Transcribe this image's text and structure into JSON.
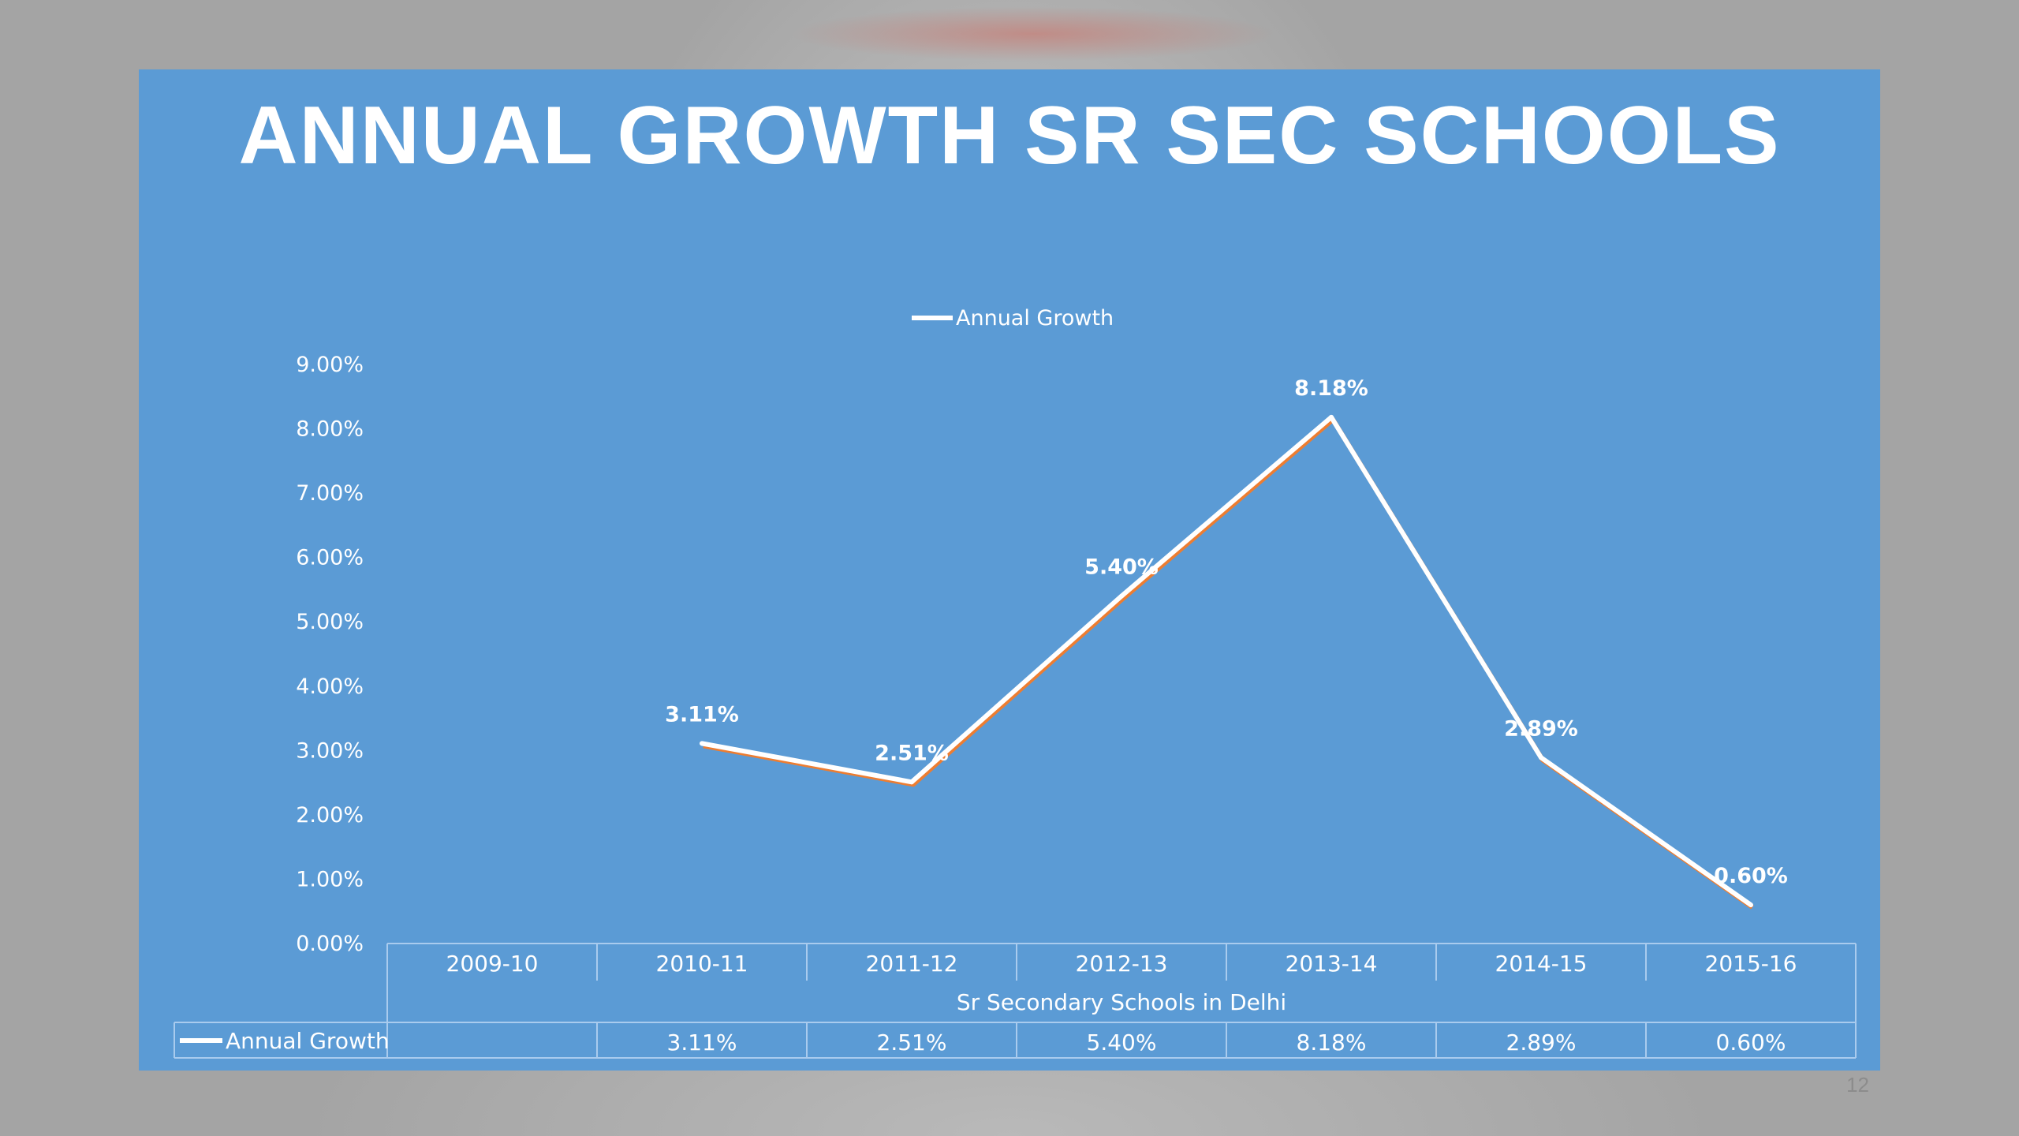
{
  "slide": {
    "page_number": "12"
  },
  "colors": {
    "panel_background": "#5b9bd5",
    "series_line": "#ffffff",
    "series_shadow": "#ed7d31",
    "text": "#ffffff"
  },
  "chart_data": {
    "type": "line",
    "title": "ANNUAL GROWTH SR SEC SCHOOLS",
    "xlabel": "Sr Secondary Schools in Delhi",
    "ylabel": "",
    "categories": [
      "2009-10",
      "2010-11",
      "2011-12",
      "2012-13",
      "2013-14",
      "2014-15",
      "2015-16"
    ],
    "series": [
      {
        "name": "Annual Growth",
        "values": [
          null,
          3.11,
          2.51,
          5.4,
          8.18,
          2.89,
          0.6
        ],
        "labels": [
          "",
          "3.11%",
          "2.51%",
          "5.40%",
          "8.18%",
          "2.89%",
          "0.60%"
        ]
      }
    ],
    "ylim": [
      0,
      9
    ],
    "y_ticks": [
      "0.00%",
      "1.00%",
      "2.00%",
      "3.00%",
      "4.00%",
      "5.00%",
      "6.00%",
      "7.00%",
      "8.00%",
      "9.00%"
    ],
    "legend": {
      "position": "top",
      "label": "Annual Growth"
    },
    "data_table": true,
    "drop_lines": true,
    "grid": false
  }
}
